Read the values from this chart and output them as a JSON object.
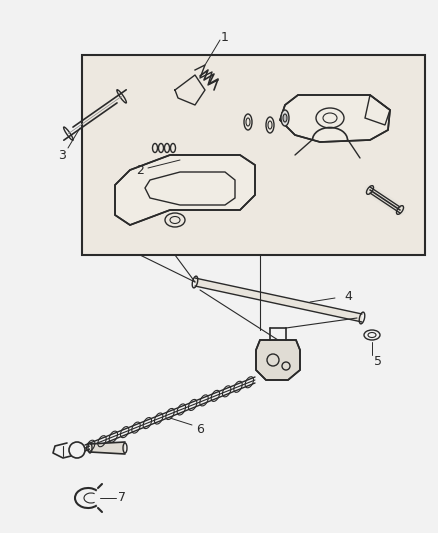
{
  "bg_color": "#f2f2f2",
  "line_color": "#2a2a2a",
  "box_fill": "#ede8e0",
  "figsize": [
    4.39,
    5.33
  ],
  "dpi": 100,
  "xlim": [
    0,
    439
  ],
  "ylim": [
    0,
    533
  ]
}
